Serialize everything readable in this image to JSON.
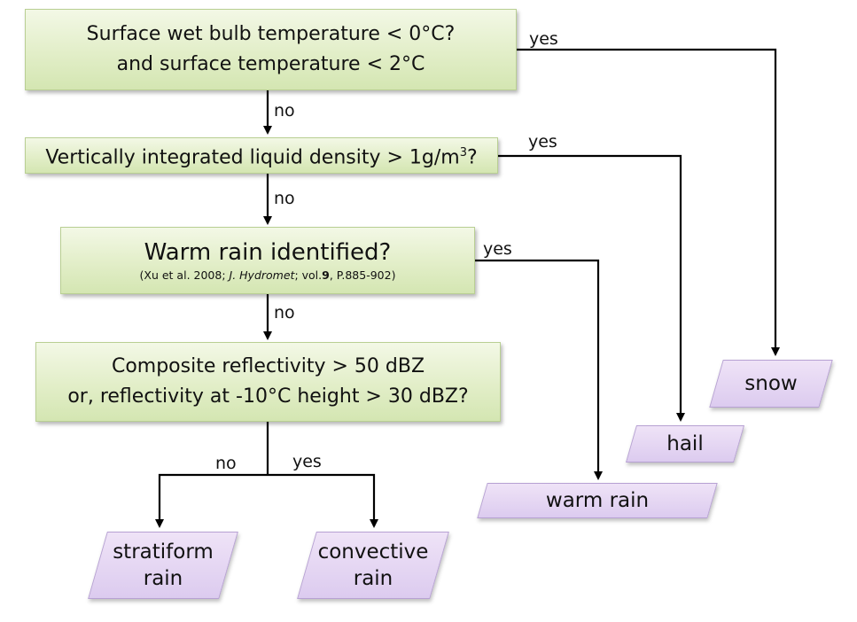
{
  "decision_boxes": {
    "wet_bulb": {
      "line1": "Surface wet bulb temperature < 0°C?",
      "line2": "and surface temperature < 2°C"
    },
    "vil": {
      "text_before": "Vertically integrated liquid density > 1g/m",
      "superscript": "3",
      "text_after": "?"
    },
    "warm_rain": {
      "title": "Warm rain identified?",
      "cite_prefix": "(Xu et al. 2008; ",
      "cite_journal": "J. Hydromet",
      "cite_middle": "; vol.",
      "cite_volume": "9",
      "cite_suffix": ", P.885-902)"
    },
    "reflectivity": {
      "line1": "Composite reflectivity > 50 dBZ",
      "line2": "or, reflectivity at -10°C height > 30 dBZ?"
    }
  },
  "outcomes": {
    "snow": "snow",
    "hail": "hail",
    "warm_rain": "warm rain",
    "stratiform_line1": "stratiform",
    "stratiform_line2": "rain",
    "convective_line1": "convective",
    "convective_line2": "rain"
  },
  "edge_labels": {
    "yes": "yes",
    "no": "no"
  },
  "colors": {
    "decision_fill": "#e2eec8",
    "outcome_fill": "#dccbef",
    "line": "#000000"
  }
}
